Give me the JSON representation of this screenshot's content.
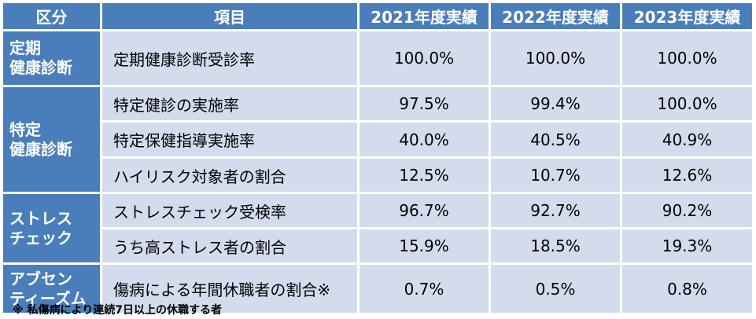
{
  "header": {
    "category": "区分",
    "item": "項目",
    "y2021": "2021年度実績",
    "y2022": "2022年度実績",
    "y2023": "2023年度実績"
  },
  "categories": {
    "regular": "定期\n健康診断",
    "specific": "特定\n健康診断",
    "stress": "ストレス\nチェック",
    "absentee": "アブセン\nティーズム"
  },
  "rows": [
    {
      "item": "定期健康診断受診率",
      "v2021": "100.0%",
      "v2022": "100.0%",
      "v2023": "100.0%"
    },
    {
      "item": "特定健診の実施率",
      "v2021": "97.5%",
      "v2022": "99.4%",
      "v2023": "100.0%"
    },
    {
      "item": "特定保健指導実施率",
      "v2021": "40.0%",
      "v2022": "40.5%",
      "v2023": "40.9%"
    },
    {
      "item": "ハイリスク対象者の割合",
      "v2021": "12.5%",
      "v2022": "10.7%",
      "v2023": "12.6%"
    },
    {
      "item": "ストレスチェック受検率",
      "v2021": "96.7%",
      "v2022": "92.7%",
      "v2023": "90.2%"
    },
    {
      "item": "うち高ストレス者の割合",
      "v2021": "15.9%",
      "v2022": "18.5%",
      "v2023": "19.3%"
    },
    {
      "item": "傷病による年間休職者の割合※",
      "v2021": "0.7%",
      "v2022": "0.5%",
      "v2023": "0.8%"
    }
  ],
  "footnote": "※ 私傷病により連続7日以上の休職する者",
  "colors": {
    "header_bg": "#4a7ebb",
    "row_bg": "#d3dcec",
    "header_text": "#ffffff"
  }
}
